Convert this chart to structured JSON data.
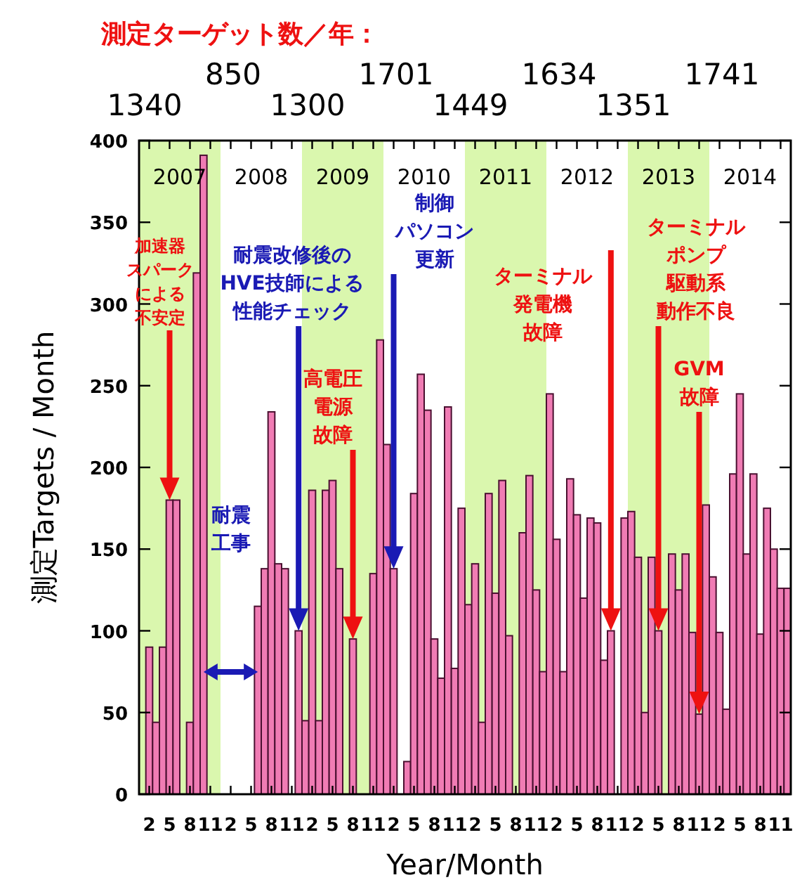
{
  "chart_data": {
    "type": "bar",
    "title": "測定ターゲット数／年：",
    "xlabel": "Year/Month",
    "ylabel": "測定Targets / Month",
    "color": "#f07cb4",
    "x": [
      "2007-01",
      "2007-02",
      "2007-03",
      "2007-04",
      "2007-05",
      "2007-06",
      "2007-07",
      "2007-08",
      "2007-09",
      "2007-10",
      "2007-11",
      "2007-12",
      "2008-01",
      "2008-02",
      "2008-03",
      "2008-04",
      "2008-05",
      "2008-06",
      "2008-07",
      "2008-08",
      "2008-09",
      "2008-10",
      "2008-11",
      "2008-12",
      "2009-01",
      "2009-02",
      "2009-03",
      "2009-04",
      "2009-05",
      "2009-06",
      "2009-07",
      "2009-08",
      "2009-09",
      "2009-10",
      "2009-11",
      "2009-12",
      "2010-01",
      "2010-02",
      "2010-03",
      "2010-04",
      "2010-05",
      "2010-06",
      "2010-07",
      "2010-08",
      "2010-09",
      "2010-10",
      "2010-11",
      "2010-12",
      "2011-01",
      "2011-02",
      "2011-03",
      "2011-04",
      "2011-05",
      "2011-06",
      "2011-07",
      "2011-08",
      "2011-09",
      "2011-10",
      "2011-11",
      "2011-12",
      "2012-01",
      "2012-02",
      "2012-03",
      "2012-04",
      "2012-05",
      "2012-06",
      "2012-07",
      "2012-08",
      "2012-09",
      "2012-10",
      "2012-11",
      "2012-12",
      "2013-01",
      "2013-02",
      "2013-03",
      "2013-04",
      "2013-05",
      "2013-06",
      "2013-07",
      "2013-08",
      "2013-09",
      "2013-10",
      "2013-11",
      "2013-12",
      "2014-01",
      "2014-02",
      "2014-03",
      "2014-04",
      "2014-05",
      "2014-06",
      "2014-07",
      "2014-08",
      "2014-09",
      "2014-10",
      "2014-11",
      "2014-12"
    ],
    "values": [
      0,
      90,
      44,
      90,
      180,
      180,
      0,
      44,
      319,
      391,
      0,
      0,
      0,
      0,
      0,
      0,
      0,
      115,
      138,
      234,
      141,
      138,
      0,
      100,
      45,
      186,
      45,
      186,
      192,
      138,
      0,
      95,
      0,
      0,
      135,
      278,
      214,
      138,
      0,
      20,
      184,
      257,
      235,
      95,
      71,
      237,
      77,
      175,
      116,
      141,
      44,
      184,
      123,
      192,
      97,
      0,
      160,
      195,
      125,
      75,
      245,
      156,
      75,
      193,
      171,
      120,
      169,
      166,
      82,
      100,
      0,
      169,
      173,
      145,
      50,
      145,
      100,
      0,
      147,
      125,
      147,
      99,
      49,
      177,
      133,
      99,
      52,
      196,
      245,
      147,
      196,
      98,
      175,
      150,
      126,
      126
    ],
    "xlim": [
      "2006-12-16",
      "2014-12-16"
    ],
    "xticks": [
      {
        "value": "2007-02",
        "label": "2"
      },
      {
        "value": "2007-05",
        "label": "5"
      },
      {
        "value": "2007-08",
        "label": "8"
      },
      {
        "value": "2007-11",
        "label": "11"
      },
      {
        "value": "2008-02",
        "label": "2"
      },
      {
        "value": "2008-05",
        "label": "5"
      },
      {
        "value": "2008-08",
        "label": "8"
      },
      {
        "value": "2008-11",
        "label": "11"
      },
      {
        "value": "2009-02",
        "label": "2"
      },
      {
        "value": "2009-05",
        "label": "5"
      },
      {
        "value": "2009-08",
        "label": "8"
      },
      {
        "value": "2009-11",
        "label": "11"
      },
      {
        "value": "2010-02",
        "label": "2"
      },
      {
        "value": "2010-05",
        "label": "5"
      },
      {
        "value": "2010-08",
        "label": "8"
      },
      {
        "value": "2010-11",
        "label": "11"
      },
      {
        "value": "2011-02",
        "label": "2"
      },
      {
        "value": "2011-05",
        "label": "5"
      },
      {
        "value": "2011-08",
        "label": "8"
      },
      {
        "value": "2011-11",
        "label": "11"
      },
      {
        "value": "2012-02",
        "label": "2"
      },
      {
        "value": "2012-05",
        "label": "5"
      },
      {
        "value": "2012-08",
        "label": "8"
      },
      {
        "value": "2012-11",
        "label": "11"
      },
      {
        "value": "2013-02",
        "label": "2"
      },
      {
        "value": "2013-05",
        "label": "5"
      },
      {
        "value": "2013-08",
        "label": "8"
      },
      {
        "value": "2013-11",
        "label": "11"
      },
      {
        "value": "2014-02",
        "label": "2"
      },
      {
        "value": "2014-05",
        "label": "5"
      },
      {
        "value": "2014-08",
        "label": "8"
      },
      {
        "value": "2014-11",
        "label": "11"
      }
    ],
    "x2lim": [
      "2006-12-16",
      "2014-12-16"
    ],
    "x2ticks": [
      {
        "value": "2007-06-16",
        "label": "2007"
      },
      {
        "value": "2008-06-16",
        "label": "2008"
      },
      {
        "value": "2009-06-16",
        "label": "2009"
      },
      {
        "value": "2010-06-16",
        "label": "2010"
      },
      {
        "value": "2011-06-16",
        "label": "2011"
      },
      {
        "value": "2012-06-16",
        "label": "2012"
      },
      {
        "value": "2013-06-16",
        "label": "2013"
      },
      {
        "value": "2014-06-16",
        "label": "2014"
      }
    ],
    "ylim": [
      0,
      400
    ],
    "yticks": [
      0,
      50,
      100,
      150,
      200,
      250,
      300,
      350,
      400
    ],
    "bands": [
      {
        "axis": "x",
        "from": "2006-12-16",
        "to": "2007-12-16",
        "color": "#daf7ae"
      },
      {
        "axis": "x",
        "from": "2008-12-16",
        "to": "2009-12-16",
        "color": "#daf7ae"
      },
      {
        "axis": "x",
        "from": "2010-12-16",
        "to": "2011-12-16",
        "color": "#daf7ae"
      },
      {
        "axis": "x",
        "from": "2012-12-16",
        "to": "2013-12-16",
        "color": "#daf7ae"
      }
    ],
    "annotations": [
      "1340",
      "850",
      "1300",
      "1701",
      "1449",
      "1634",
      "1351",
      "1741",
      "加速器スパークによる不安定",
      "耐震改修後のHVE技師による性能チェック",
      "高電圧電源故障",
      "制御パソコン更新",
      "ターミナル発電機故障",
      "ターミナルポンプ駆動系動作不良",
      "GVM故障",
      "耐震工事"
    ]
  }
}
